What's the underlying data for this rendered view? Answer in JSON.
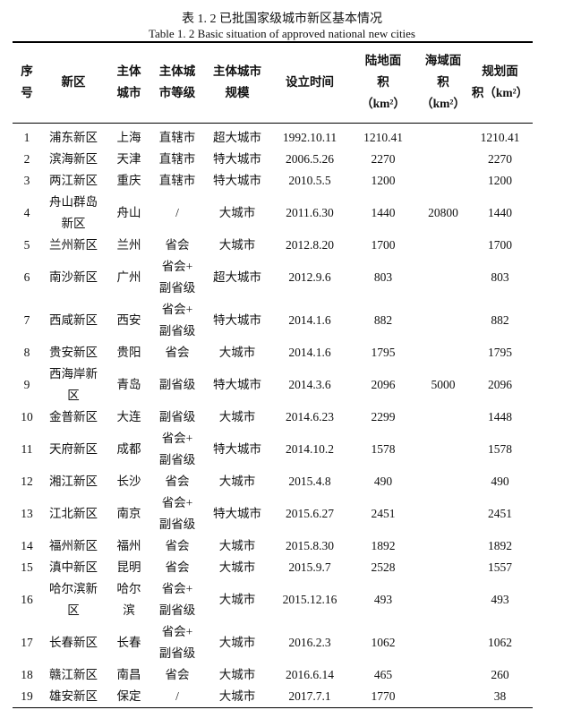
{
  "caption": {
    "zh": "表 1. 2  已批国家级城市新区基本情况",
    "en": "Table 1. 2 Basic situation of approved national new cities"
  },
  "headers": [
    "序\n号",
    "新区",
    "主体\n城市",
    "主体城\n市等级",
    "主体城市\n规模",
    "设立时间",
    "陆地面\n积\n（km²）",
    "海域面\n积\n（km²）",
    "规划面\n积（km²）"
  ],
  "rows": [
    [
      "1",
      "浦东新区",
      "上海",
      "直辖市",
      "超大城市",
      "1992.10.11",
      "1210.41",
      "",
      "1210.41"
    ],
    [
      "2",
      "滨海新区",
      "天津",
      "直辖市",
      "特大城市",
      "2006.5.26",
      "2270",
      "",
      "2270"
    ],
    [
      "3",
      "两江新区",
      "重庆",
      "直辖市",
      "特大城市",
      "2010.5.5",
      "1200",
      "",
      "1200"
    ],
    [
      "4",
      "舟山群岛\n新区",
      "舟山",
      "/",
      "大城市",
      "2011.6.30",
      "1440",
      "20800",
      "1440"
    ],
    [
      "5",
      "兰州新区",
      "兰州",
      "省会",
      "大城市",
      "2012.8.20",
      "1700",
      "",
      "1700"
    ],
    [
      "6",
      "南沙新区",
      "广州",
      "省会+\n副省级",
      "超大城市",
      "2012.9.6",
      "803",
      "",
      "803"
    ],
    [
      "7",
      "西咸新区",
      "西安",
      "省会+\n副省级",
      "特大城市",
      "2014.1.6",
      "882",
      "",
      "882"
    ],
    [
      "8",
      "贵安新区",
      "贵阳",
      "省会",
      "大城市",
      "2014.1.6",
      "1795",
      "",
      "1795"
    ],
    [
      "9",
      "西海岸新\n区",
      "青岛",
      "副省级",
      "特大城市",
      "2014.3.6",
      "2096",
      "5000",
      "2096"
    ],
    [
      "10",
      "金普新区",
      "大连",
      "副省级",
      "大城市",
      "2014.6.23",
      "2299",
      "",
      "1448"
    ],
    [
      "11",
      "天府新区",
      "成都",
      "省会+\n副省级",
      "特大城市",
      "2014.10.2",
      "1578",
      "",
      "1578"
    ],
    [
      "12",
      "湘江新区",
      "长沙",
      "省会",
      "大城市",
      "2015.4.8",
      "490",
      "",
      "490"
    ],
    [
      "13",
      "江北新区",
      "南京",
      "省会+\n副省级",
      "特大城市",
      "2015.6.27",
      "2451",
      "",
      "2451"
    ],
    [
      "14",
      "福州新区",
      "福州",
      "省会",
      "大城市",
      "2015.8.30",
      "1892",
      "",
      "1892"
    ],
    [
      "15",
      "滇中新区",
      "昆明",
      "省会",
      "大城市",
      "2015.9.7",
      "2528",
      "",
      "1557"
    ],
    [
      "16",
      "哈尔滨新\n区",
      "哈尔\n滨",
      "省会+\n副省级",
      "大城市",
      "2015.12.16",
      "493",
      "",
      "493"
    ],
    [
      "17",
      "长春新区",
      "长春",
      "省会+\n副省级",
      "大城市",
      "2016.2.3",
      "1062",
      "",
      "1062"
    ],
    [
      "18",
      "赣江新区",
      "南昌",
      "省会",
      "大城市",
      "2016.6.14",
      "465",
      "",
      "260"
    ],
    [
      "19",
      "雄安新区",
      "保定",
      "/",
      "大城市",
      "2017.7.1",
      "1770",
      "",
      "38"
    ]
  ]
}
